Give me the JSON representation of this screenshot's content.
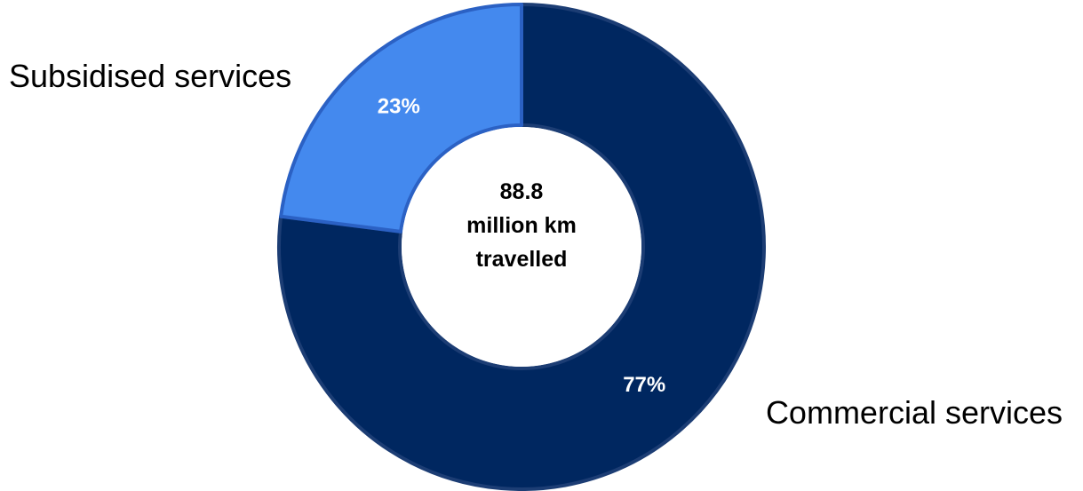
{
  "chart_data": {
    "type": "pie",
    "variant": "donut",
    "center_text": [
      "88.8",
      "million km",
      "travelled"
    ],
    "slices": [
      {
        "label": "Commercial services",
        "value": 77,
        "value_label": "77%",
        "color": "#002760",
        "edge": "#1c3d74"
      },
      {
        "label": "Subsidised services",
        "value": 23,
        "value_label": "23%",
        "color": "#4489ee",
        "edge": "#2b61c4"
      }
    ]
  }
}
